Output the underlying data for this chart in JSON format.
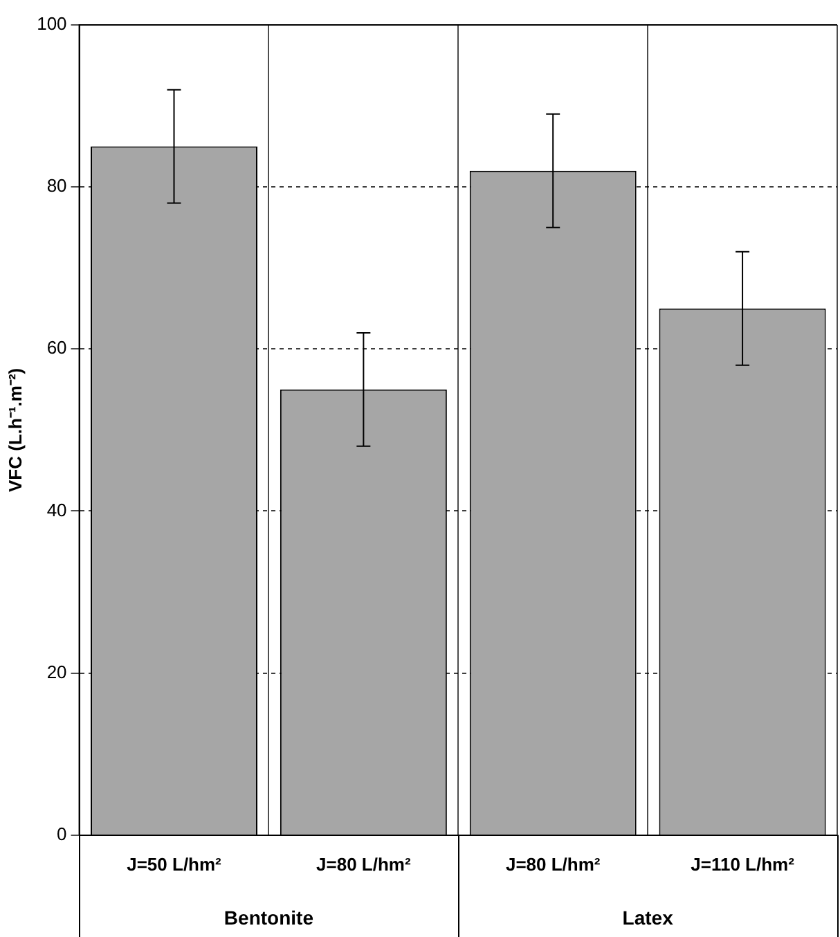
{
  "chart_data": {
    "type": "bar",
    "categories": [
      "J=50 L/hm²",
      "J=80 L/hm²",
      "J=80 L/hm²",
      "J=110 L/hm²"
    ],
    "values": [
      85,
      55,
      82,
      65
    ],
    "errors": [
      7,
      7,
      7,
      7
    ],
    "color": "#a6a6a6",
    "ylabel": "VFC (L.h⁻¹.m⁻²)",
    "annotations": [
      "Bentonite",
      "Latex"
    ],
    "ylim": [
      0,
      100
    ],
    "yticks": [
      0,
      20,
      40,
      60,
      80,
      100
    ],
    "grid": true,
    "legend": false
  }
}
